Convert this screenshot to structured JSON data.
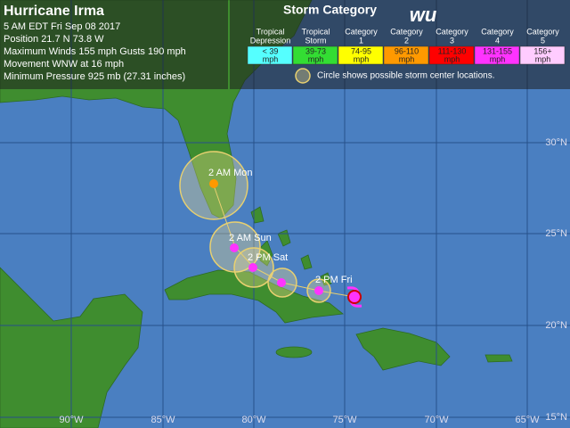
{
  "header": {
    "title": "Hurricane Irma",
    "lines": [
      "5 AM EDT Fri Sep 08 2017",
      "Position 21.7 N 73.8 W",
      "Maximum Winds 155 mph  Gusts 190 mph",
      "Movement WNW at 16 mph",
      "Minimum Pressure 925 mb (27.31 inches)"
    ]
  },
  "legend": {
    "title": "Storm Category",
    "logo": "wu",
    "categories": [
      {
        "name": [
          "Tropical",
          "Depression"
        ],
        "range": [
          "< 39",
          "mph"
        ],
        "color": "#55ffff"
      },
      {
        "name": [
          "Tropical",
          "Storm"
        ],
        "range": [
          "39-73",
          "mph"
        ],
        "color": "#33dd33"
      },
      {
        "name": [
          "Category",
          "1"
        ],
        "range": [
          "74-95",
          "mph"
        ],
        "color": "#ffff00"
      },
      {
        "name": [
          "Category",
          "2"
        ],
        "range": [
          "96-110",
          "mph"
        ],
        "color": "#ff9900"
      },
      {
        "name": [
          "Category",
          "3"
        ],
        "range": [
          "111-130",
          "mph"
        ],
        "color": "#ff0000"
      },
      {
        "name": [
          "Category",
          "4"
        ],
        "range": [
          "131-155",
          "mph"
        ],
        "color": "#ff33ff"
      },
      {
        "name": [
          "Category",
          "5"
        ],
        "range": [
          "156+",
          "mph"
        ],
        "color": "#ffccff"
      }
    ],
    "note": "Circle shows possible storm center locations."
  },
  "map": {
    "lon_labels": [
      "90°W",
      "85°W",
      "80°W",
      "75°W",
      "70°W",
      "65°W"
    ],
    "lat_labels": [
      "30°N",
      "25°N",
      "20°N",
      "15°N"
    ],
    "forecast_labels": [
      "2 AM Mon",
      "2 AM Sun",
      "2 PM Sat",
      "2 PM Fri"
    ]
  }
}
